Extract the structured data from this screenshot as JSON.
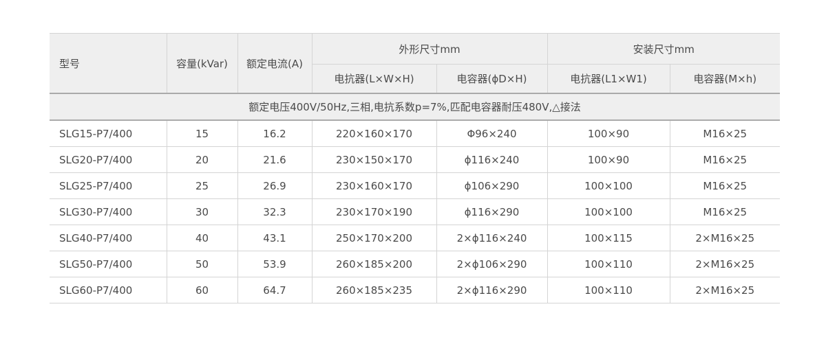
{
  "header": {
    "model": "型号",
    "capacity": "容量(kVar)",
    "current": "额定电流(A)",
    "outer": "外形尺寸mm",
    "install": "安装尺寸mm",
    "outer_reactor": "电抗器(L×W×H)",
    "outer_capacitor": "电容器(ϕD×H)",
    "install_reactor": "电抗器(L1×W1)",
    "install_capacitor": "电容器(M×h)"
  },
  "banner": "额定电压400V/50Hz,三相,电抗系数p=7%,匹配电容器耐压480V,△接法",
  "rows": [
    [
      "SLG15-P7/400",
      "15",
      "16.2",
      "220×160×170",
      "Φ96×240",
      "100×90",
      "M16×25"
    ],
    [
      "SLG20-P7/400",
      "20",
      "21.6",
      "230×150×170",
      "ϕ116×240",
      "100×90",
      "M16×25"
    ],
    [
      "SLG25-P7/400",
      "25",
      "26.9",
      "230×160×170",
      "ϕ106×290",
      "100×100",
      "M16×25"
    ],
    [
      "SLG30-P7/400",
      "30",
      "32.3",
      "230×170×190",
      "ϕ116×290",
      "100×100",
      "M16×25"
    ],
    [
      "SLG40-P7/400",
      "40",
      "43.1",
      "250×170×200",
      "2×ϕ116×240",
      "100×115",
      "2×M16×25"
    ],
    [
      "SLG50-P7/400",
      "50",
      "53.9",
      "260×185×200",
      "2×ϕ106×290",
      "100×110",
      "2×M16×25"
    ],
    [
      "SLG60-P7/400",
      "60",
      "64.7",
      "260×185×235",
      "2×ϕ116×290",
      "100×110",
      "2×M16×25"
    ]
  ]
}
